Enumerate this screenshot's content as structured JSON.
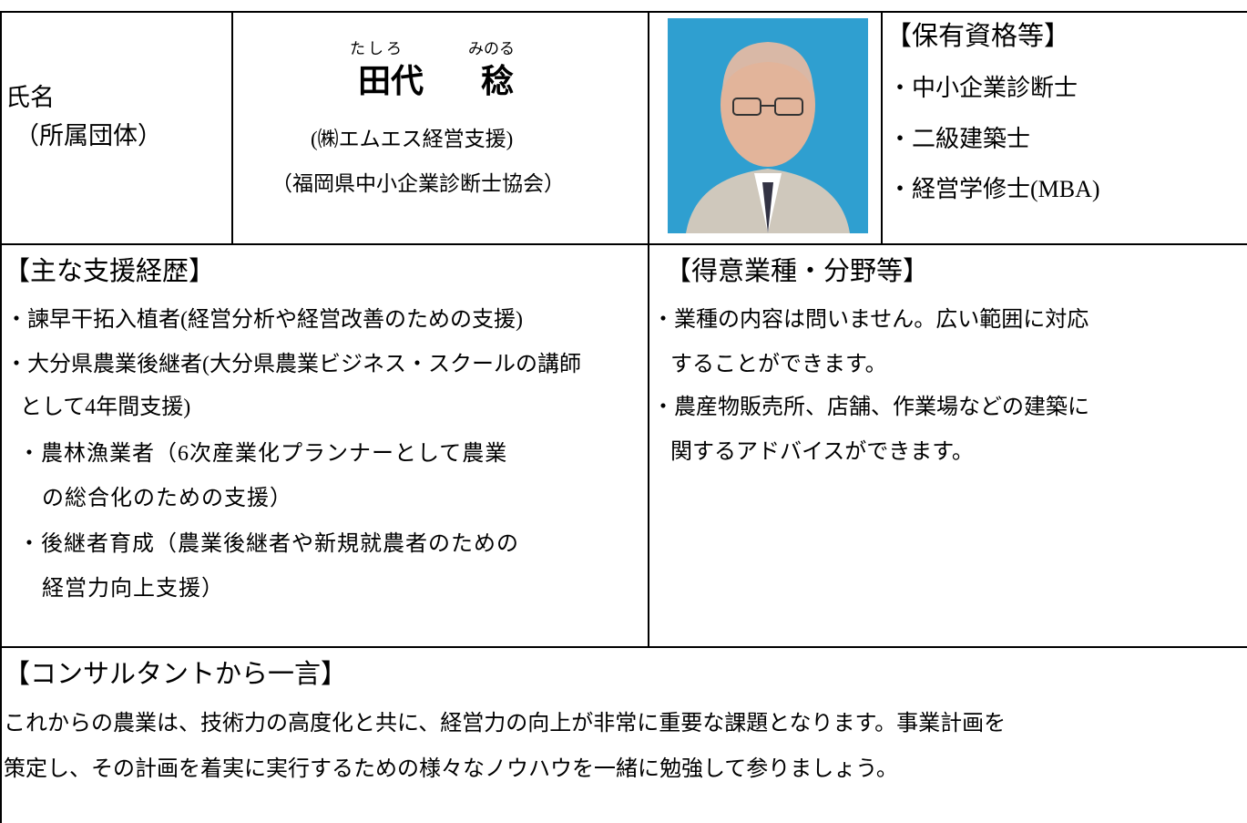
{
  "profile": {
    "label": {
      "name": "氏名",
      "affiliation": "（所属団体）"
    },
    "name": {
      "family_reading": "たしろ",
      "given_reading": "みのる",
      "family": "田代",
      "given": "稔"
    },
    "organizations": [
      "(㈱エムエス経営支援)",
      "（福岡県中小企業診断士協会）"
    ]
  },
  "qualifications": {
    "title": "【保有資格等】",
    "items": [
      "・中小企業診断士",
      "・二級建築士",
      "・経営学修士(MBA)"
    ]
  },
  "career": {
    "title": "【主な支援経歴】",
    "lines": [
      "・諫早干拓入植者(経営分析や経営改善のための支援)",
      "・大分県農業後継者(大分県農業ビジネス・スクールの講師",
      "として4年間支援)",
      "・農林漁業者（6次産業化プランナーとして農業",
      "の総合化のための支援）",
      "・後継者育成（農業後継者や新規就農者のための",
      "経営力向上支援）"
    ]
  },
  "specialties": {
    "title": "【得意業種・分野等】",
    "lines": [
      "・業種の内容は問いません。広い範囲に対応",
      "することができます。",
      "・農産物販売所、店舗、作業場などの建築に",
      "関するアドバイスができます。"
    ]
  },
  "message": {
    "title": "【コンサルタントから一言】",
    "lines": [
      "これからの農業は、技術力の高度化と共に、経営力の向上が非常に重要な課題となります。事業計画を",
      "策定し、その計画を着実に実行するための様々なノウハウを一緒に勉強して参りましょう。"
    ]
  }
}
